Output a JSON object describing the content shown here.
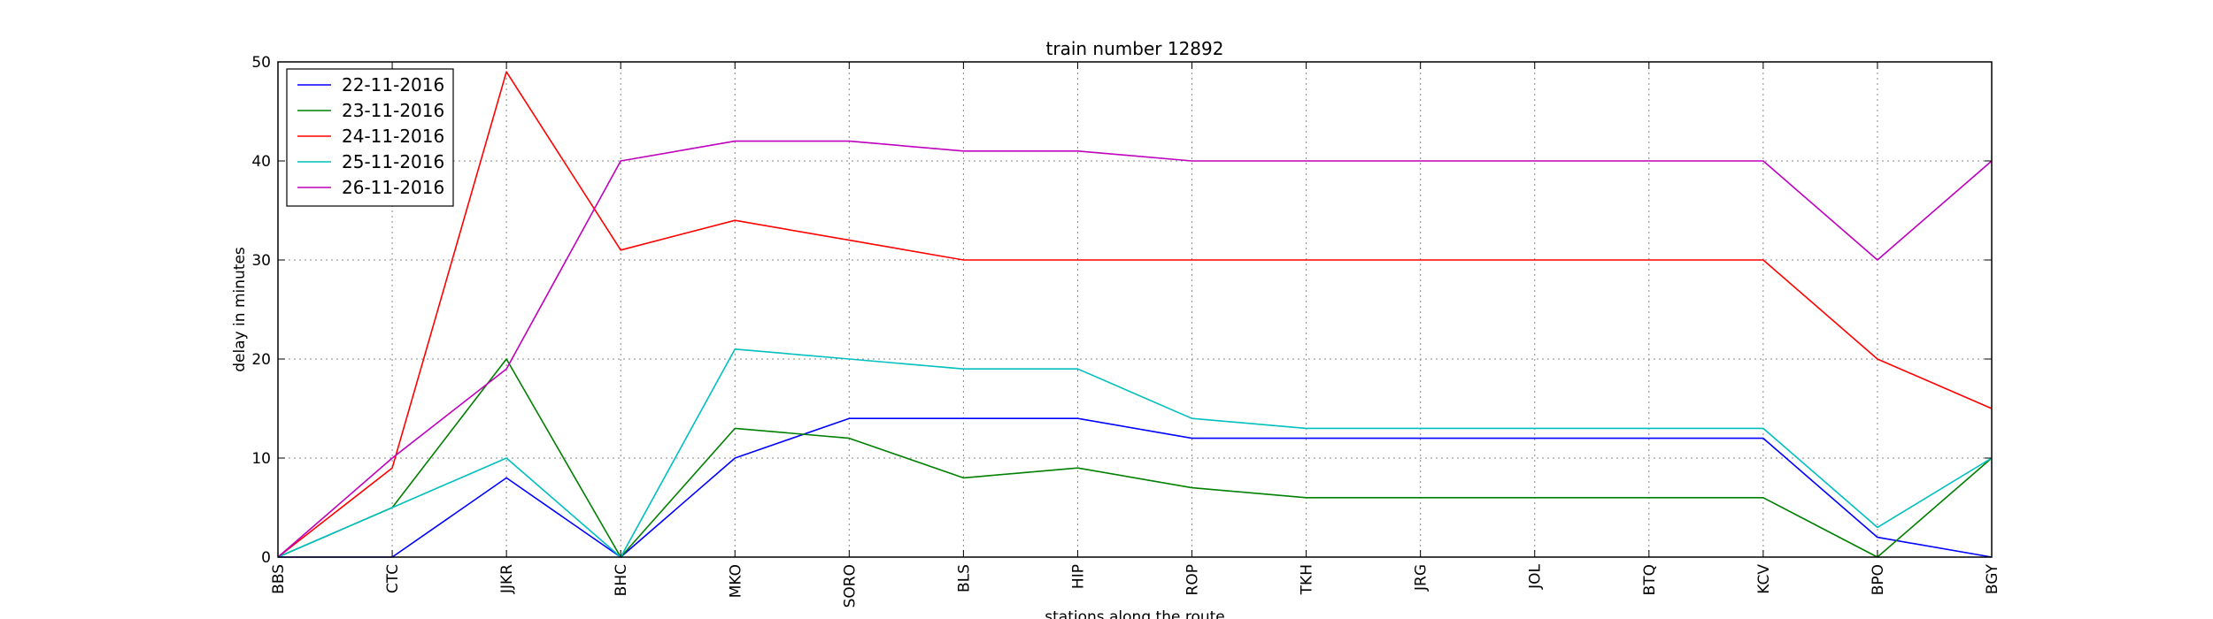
{
  "chart_data": {
    "type": "line",
    "title": "train number 12892",
    "xlabel": "stations along the route",
    "ylabel": "delay in minutes",
    "categories": [
      "BBS",
      "CTC",
      "JJKR",
      "BHC",
      "MKO",
      "SORO",
      "BLS",
      "HIP",
      "ROP",
      "TKH",
      "JRG",
      "JOL",
      "BTQ",
      "KCV",
      "BPO",
      "BGY"
    ],
    "ylim": [
      0,
      50
    ],
    "yticks": [
      0,
      10,
      20,
      30,
      40,
      50
    ],
    "grid": true,
    "legend_position": "top-left",
    "series": [
      {
        "name": "22-11-2016",
        "color": "#0000ff",
        "values": [
          0,
          0,
          8,
          0,
          10,
          14,
          14,
          14,
          12,
          12,
          12,
          12,
          12,
          12,
          2,
          0
        ]
      },
      {
        "name": "23-11-2016",
        "color": "#008000",
        "values": [
          0,
          5,
          20,
          0,
          13,
          12,
          8,
          9,
          7,
          6,
          6,
          6,
          6,
          6,
          0,
          10
        ]
      },
      {
        "name": "24-11-2016",
        "color": "#ff0000",
        "values": [
          0,
          9,
          49,
          31,
          34,
          32,
          30,
          30,
          30,
          30,
          30,
          30,
          30,
          30,
          20,
          15
        ]
      },
      {
        "name": "25-11-2016",
        "color": "#00bfbf",
        "values": [
          0,
          5,
          10,
          0,
          21,
          20,
          19,
          19,
          14,
          13,
          13,
          13,
          13,
          13,
          3,
          10
        ]
      },
      {
        "name": "26-11-2016",
        "color": "#bf00bf",
        "values": [
          0,
          10,
          19,
          40,
          42,
          42,
          41,
          41,
          40,
          40,
          40,
          40,
          40,
          40,
          30,
          40
        ]
      }
    ]
  }
}
